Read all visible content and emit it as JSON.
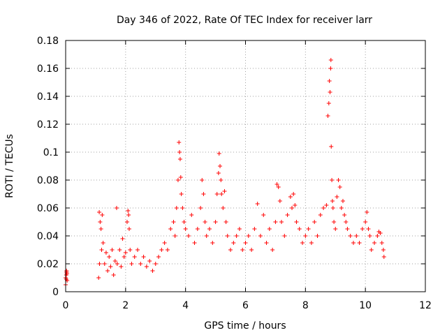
{
  "chart_data": {
    "type": "scatter",
    "title": "Day 346 of 2022, Rate Of TEC Index for receiver larr",
    "xlabel": "GPS time / hours",
    "ylabel": "ROTI / TECUs",
    "xlim": [
      0,
      12
    ],
    "ylim": [
      0,
      0.18
    ],
    "xticks": [
      0,
      2,
      4,
      6,
      8,
      10,
      12
    ],
    "yticks": [
      0,
      0.02,
      0.04,
      0.06,
      0.08,
      0.1,
      0.12,
      0.14,
      0.16,
      0.18
    ],
    "xtick_labels": [
      "0",
      "2",
      "4",
      "6",
      "8",
      "10",
      "12"
    ],
    "ytick_labels": [
      "0",
      "0.02",
      "0.04",
      "0.06",
      "0.08",
      "0.1",
      "0.12",
      "0.14",
      "0.16",
      "0.18"
    ],
    "grid": true,
    "marker": "plus",
    "marker_color": "#ff0000",
    "series": [
      {
        "x": [
          0.0,
          0.02,
          0.03,
          0.05,
          0.0,
          0.04,
          0.02,
          0.03,
          1.1,
          1.12,
          1.15,
          1.18,
          1.2,
          1.22,
          1.13,
          1.25,
          1.3,
          1.35,
          1.4,
          1.45,
          1.5,
          1.55,
          1.6,
          1.65,
          1.7,
          1.72,
          1.8,
          1.85,
          1.9,
          1.95,
          2.0,
          2.05,
          2.08,
          2.1,
          2.12,
          2.15,
          2.2,
          2.3,
          2.4,
          2.5,
          2.6,
          2.7,
          2.8,
          2.9,
          3.0,
          3.1,
          3.2,
          3.3,
          3.4,
          3.5,
          3.6,
          3.65,
          3.7,
          3.75,
          3.78,
          3.8,
          3.82,
          3.84,
          3.86,
          3.9,
          3.95,
          4.0,
          4.1,
          4.2,
          4.3,
          4.4,
          4.5,
          4.55,
          4.6,
          4.65,
          4.7,
          4.8,
          4.9,
          5.0,
          5.05,
          5.1,
          5.12,
          5.15,
          5.18,
          5.2,
          5.25,
          5.3,
          5.35,
          5.4,
          5.5,
          5.6,
          5.7,
          5.8,
          5.9,
          6.0,
          6.1,
          6.2,
          6.3,
          6.4,
          6.5,
          6.6,
          6.7,
          6.8,
          6.9,
          7.0,
          7.05,
          7.1,
          7.15,
          7.2,
          7.3,
          7.4,
          7.5,
          7.55,
          7.6,
          7.65,
          7.7,
          7.8,
          7.9,
          8.0,
          8.1,
          8.2,
          8.3,
          8.4,
          8.5,
          8.6,
          8.7,
          8.75,
          8.78,
          8.8,
          8.82,
          8.84,
          8.85,
          8.86,
          8.88,
          8.9,
          8.92,
          8.95,
          9.0,
          9.05,
          9.1,
          9.15,
          9.2,
          9.25,
          9.3,
          9.35,
          9.4,
          9.5,
          9.6,
          9.7,
          9.8,
          9.9,
          10.0,
          10.05,
          10.1,
          10.15,
          10.2,
          10.3,
          10.4,
          10.45,
          10.5,
          10.55,
          10.6,
          10.62
        ],
        "y": [
          0.01,
          0.012,
          0.015,
          0.008,
          0.005,
          0.013,
          0.009,
          0.014,
          0.01,
          0.057,
          0.05,
          0.045,
          0.03,
          0.055,
          0.02,
          0.035,
          0.02,
          0.028,
          0.015,
          0.025,
          0.018,
          0.03,
          0.012,
          0.022,
          0.06,
          0.02,
          0.03,
          0.018,
          0.038,
          0.025,
          0.028,
          0.05,
          0.058,
          0.055,
          0.045,
          0.03,
          0.02,
          0.025,
          0.03,
          0.02,
          0.025,
          0.018,
          0.022,
          0.015,
          0.02,
          0.025,
          0.03,
          0.035,
          0.03,
          0.045,
          0.05,
          0.04,
          0.06,
          0.08,
          0.107,
          0.1,
          0.095,
          0.082,
          0.07,
          0.06,
          0.05,
          0.045,
          0.04,
          0.055,
          0.035,
          0.045,
          0.06,
          0.08,
          0.07,
          0.05,
          0.04,
          0.045,
          0.035,
          0.05,
          0.07,
          0.085,
          0.099,
          0.09,
          0.08,
          0.07,
          0.06,
          0.072,
          0.05,
          0.04,
          0.03,
          0.035,
          0.04,
          0.045,
          0.03,
          0.035,
          0.04,
          0.03,
          0.045,
          0.063,
          0.04,
          0.055,
          0.035,
          0.045,
          0.03,
          0.05,
          0.077,
          0.075,
          0.065,
          0.05,
          0.04,
          0.055,
          0.068,
          0.06,
          0.07,
          0.062,
          0.05,
          0.045,
          0.035,
          0.04,
          0.045,
          0.035,
          0.05,
          0.04,
          0.055,
          0.06,
          0.062,
          0.126,
          0.135,
          0.151,
          0.143,
          0.16,
          0.166,
          0.104,
          0.08,
          0.065,
          0.06,
          0.05,
          0.045,
          0.068,
          0.08,
          0.075,
          0.06,
          0.065,
          0.055,
          0.05,
          0.045,
          0.04,
          0.035,
          0.04,
          0.035,
          0.045,
          0.05,
          0.057,
          0.045,
          0.04,
          0.03,
          0.035,
          0.04,
          0.043,
          0.042,
          0.035,
          0.03,
          0.025
        ]
      }
    ]
  }
}
